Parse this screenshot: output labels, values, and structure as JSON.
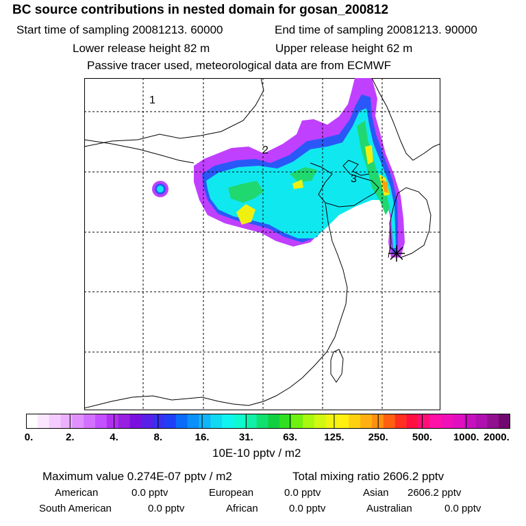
{
  "title": "BC  source contributions in nested domain for gosan_200812",
  "header": {
    "start_time": "Start time of sampling 20081213. 60000",
    "end_time": "End time of sampling 20081213. 90000",
    "lower_height": "Lower release height   82 m",
    "upper_height": "Upper release height   62 m",
    "tracer_note": "Passive tracer used, meteorological data are from ECMWF"
  },
  "map": {
    "point_labels": [
      "3",
      "2",
      "1"
    ],
    "receptor_marker": "asterisk-icon"
  },
  "colorbar": {
    "ticks": [
      "0.",
      "2.",
      "4.",
      "8.",
      "16.",
      "31.",
      "63.",
      "125.",
      "250.",
      "500.",
      "1000.",
      "2000."
    ],
    "colors": [
      "#ffffff",
      "#fbe6ff",
      "#f4ccff",
      "#ecb0ff",
      "#e090ff",
      "#d470ff",
      "#c450ff",
      "#b030f0",
      "#9820e0",
      "#7a10e0",
      "#5a20e8",
      "#3a30f0",
      "#2040f8",
      "#0a6cf8",
      "#0a90f8",
      "#10b4f8",
      "#10d8f0",
      "#10f4f0",
      "#10f8d0",
      "#10f0a8",
      "#10e070",
      "#10d040",
      "#30e020",
      "#70f010",
      "#a8f810",
      "#d0f810",
      "#f0f410",
      "#fff010",
      "#ffd010",
      "#ffb010",
      "#ff9010",
      "#ff6010",
      "#ff3020",
      "#ff1040",
      "#ff1078",
      "#ff10a8",
      "#f010b8",
      "#e010c0",
      "#c810c0",
      "#b010b0",
      "#901090",
      "#700870"
    ],
    "unit": "10E-10 pptv / m2"
  },
  "summary": {
    "max_value": "Maximum value  0.274E-07 pptv / m2",
    "total_mixing": "Total mixing ratio     2606.2 pptv",
    "american": "American",
    "american_val": "0.0 pptv",
    "european": "European",
    "european_val": "0.0 pptv",
    "asian": "Asian",
    "asian_val": "2606.2 pptv",
    "south_american": "South American",
    "south_american_val": "0.0 pptv",
    "african": "African",
    "african_val": "0.0 pptv",
    "australian": "Australian",
    "australian_val": "0.0 pptv"
  }
}
